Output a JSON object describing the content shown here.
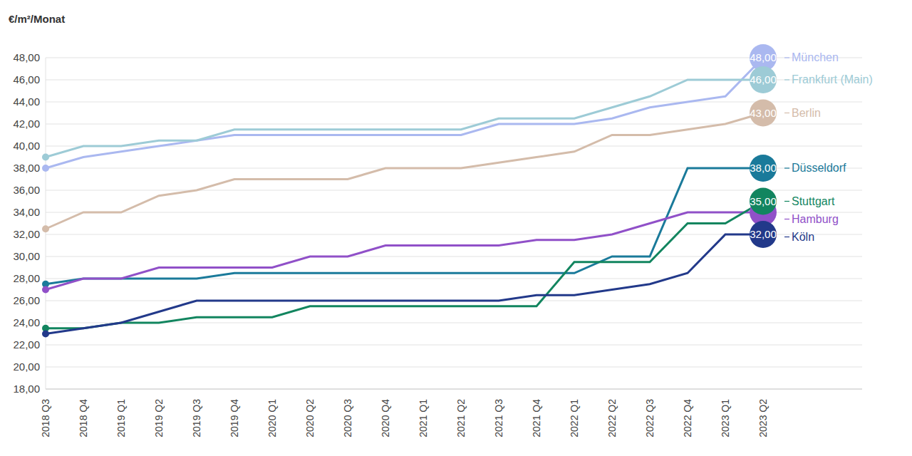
{
  "chart_data": {
    "type": "line",
    "y_label": "€/m²/Monat",
    "categories": [
      "2018 Q3",
      "2018 Q4",
      "2019 Q1",
      "2019 Q2",
      "2019 Q3",
      "2019 Q4",
      "2020 Q1",
      "2020 Q2",
      "2020 Q3",
      "2020 Q4",
      "2021 Q1",
      "2021 Q2",
      "2021 Q3",
      "2021 Q4",
      "2022 Q1",
      "2022 Q2",
      "2022 Q3",
      "2022 Q4",
      "2023 Q1",
      "2023 Q2"
    ],
    "ylim": [
      18,
      48
    ],
    "yticks": [
      {
        "value": 18,
        "label": "18,00"
      },
      {
        "value": 20,
        "label": "20,00"
      },
      {
        "value": 22,
        "label": "22,00"
      },
      {
        "value": 24,
        "label": "24,00"
      },
      {
        "value": 26,
        "label": "26,00"
      },
      {
        "value": 28,
        "label": "28,00"
      },
      {
        "value": 30,
        "label": "30,00"
      },
      {
        "value": 32,
        "label": "32,00"
      },
      {
        "value": 34,
        "label": "34,00"
      },
      {
        "value": 36,
        "label": "36,00"
      },
      {
        "value": 38,
        "label": "38,00"
      },
      {
        "value": 40,
        "label": "40,00"
      },
      {
        "value": 42,
        "label": "42,00"
      },
      {
        "value": 44,
        "label": "44,00"
      },
      {
        "value": 46,
        "label": "46,00"
      },
      {
        "value": 48,
        "label": "48,00"
      }
    ],
    "grid": true,
    "series": [
      {
        "name": "München",
        "color": "#aab8f0",
        "values": [
          38,
          39,
          39.5,
          40,
          40.5,
          41,
          41,
          41,
          41,
          41,
          41,
          41,
          42,
          42,
          42,
          42.5,
          43.5,
          44,
          44.5,
          48
        ],
        "value_labels": [
          null,
          null,
          null,
          null,
          null,
          null,
          null,
          null,
          null,
          null,
          null,
          null,
          null,
          null,
          null,
          null,
          null,
          null,
          null,
          "48,00"
        ]
      },
      {
        "name": "Frankfurt (Main)",
        "color": "#9dcbd6",
        "values": [
          39,
          40,
          40,
          40.5,
          40.5,
          41.5,
          41.5,
          41.5,
          41.5,
          41.5,
          41.5,
          41.5,
          42.5,
          42.5,
          42.5,
          43.5,
          44.5,
          46,
          46,
          46
        ],
        "value_labels": [
          null,
          null,
          null,
          null,
          null,
          null,
          null,
          null,
          null,
          null,
          null,
          null,
          null,
          null,
          null,
          null,
          null,
          null,
          null,
          "46,00"
        ]
      },
      {
        "name": "Berlin",
        "color": "#d4bcaa",
        "values": [
          32.5,
          34,
          34,
          35.5,
          36,
          37,
          37,
          37,
          37,
          38,
          38,
          38,
          38.5,
          39,
          39.5,
          41,
          41,
          41.5,
          42,
          43
        ],
        "value_labels": [
          null,
          null,
          null,
          null,
          null,
          null,
          null,
          null,
          null,
          null,
          null,
          null,
          null,
          null,
          null,
          null,
          null,
          null,
          null,
          "43,00"
        ]
      },
      {
        "name": "Düsseldorf",
        "color": "#1a7a9a",
        "values": [
          27.5,
          28,
          28,
          28,
          28,
          28.5,
          28.5,
          28.5,
          28.5,
          28.5,
          28.5,
          28.5,
          28.5,
          28.5,
          28.5,
          30,
          30,
          38,
          38,
          38
        ],
        "value_labels": [
          null,
          null,
          null,
          null,
          null,
          null,
          null,
          null,
          null,
          null,
          null,
          null,
          null,
          null,
          null,
          null,
          null,
          null,
          null,
          "38,00"
        ]
      },
      {
        "name": "Hamburg",
        "color": "#9050c8",
        "values": [
          27,
          28,
          28,
          29,
          29,
          29,
          29,
          30,
          30,
          31,
          31,
          31,
          31,
          31.5,
          31.5,
          32,
          33,
          34,
          34,
          34
        ],
        "value_labels": [
          null,
          null,
          null,
          null,
          null,
          null,
          null,
          null,
          null,
          null,
          null,
          null,
          null,
          null,
          null,
          null,
          null,
          null,
          null,
          null
        ]
      },
      {
        "name": "Stuttgart",
        "color": "#12855f",
        "values": [
          23.5,
          23.5,
          24,
          24,
          24.5,
          24.5,
          24.5,
          25.5,
          25.5,
          25.5,
          25.5,
          25.5,
          25.5,
          25.5,
          29.5,
          29.5,
          29.5,
          33,
          33,
          35
        ],
        "value_labels": [
          null,
          null,
          null,
          null,
          null,
          null,
          null,
          null,
          null,
          null,
          null,
          null,
          null,
          null,
          null,
          null,
          null,
          null,
          null,
          "35,00"
        ]
      },
      {
        "name": "Köln",
        "color": "#22398a",
        "values": [
          23,
          23.5,
          24,
          25,
          26,
          26,
          26,
          26,
          26,
          26,
          26,
          26,
          26,
          26.5,
          26.5,
          27,
          27.5,
          28.5,
          32,
          32
        ],
        "value_labels": [
          null,
          null,
          null,
          null,
          null,
          null,
          null,
          null,
          null,
          null,
          null,
          null,
          null,
          null,
          null,
          null,
          null,
          null,
          null,
          "32,00"
        ]
      }
    ]
  }
}
